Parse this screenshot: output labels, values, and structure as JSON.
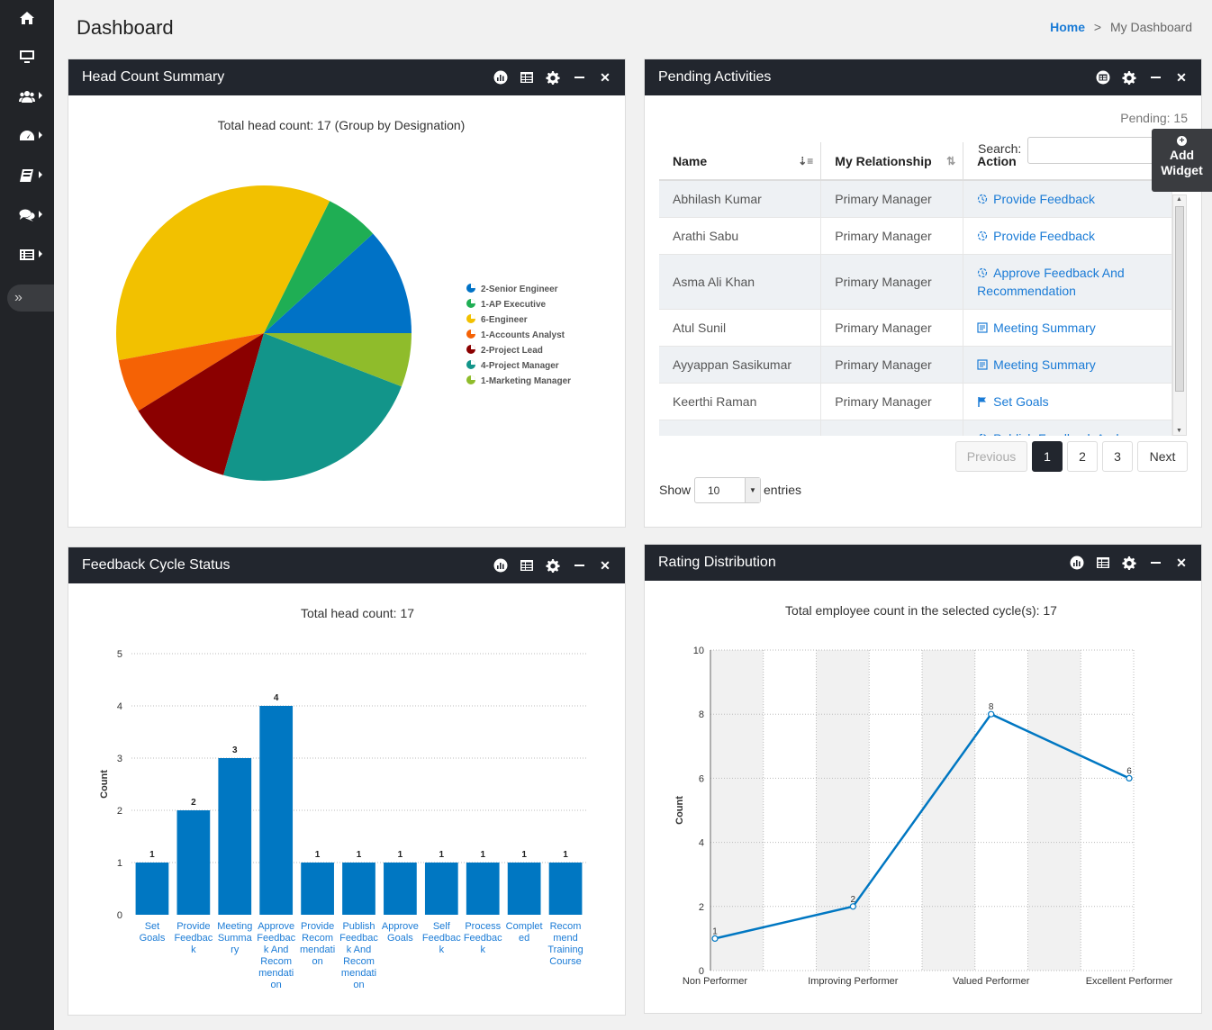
{
  "sidebar": {
    "items": [
      {
        "icon": "home-icon"
      },
      {
        "icon": "monitor-icon"
      },
      {
        "icon": "users-icon"
      },
      {
        "icon": "dashboard-gauge-icon"
      },
      {
        "icon": "book-icon"
      },
      {
        "icon": "chat-icon"
      },
      {
        "icon": "list-icon"
      }
    ],
    "toggle": "»"
  },
  "header": {
    "title": "Dashboard",
    "breadcrumb": {
      "home": "Home",
      "separator": ">",
      "current": "My Dashboard"
    }
  },
  "add_widget": {
    "line1": "Add",
    "line2": "Widget"
  },
  "panels": {
    "headcount": {
      "title": "Head Count Summary",
      "subtitle": "Total head count: 17 (Group by Designation)"
    },
    "pending": {
      "title": "Pending Activities",
      "pending_label": "Pending: 15",
      "search_label": "Search:",
      "search_value": "",
      "columns": [
        "Name",
        "My Relationship",
        "Action"
      ],
      "rows": [
        {
          "name": "Abhilash Kumar",
          "relationship": "Primary Manager",
          "action": "Provide Feedback",
          "icon": "feedback-icon"
        },
        {
          "name": "Arathi Sabu",
          "relationship": "Primary Manager",
          "action": "Provide Feedback",
          "icon": "feedback-icon"
        },
        {
          "name": "Asma Ali Khan",
          "relationship": "Primary Manager",
          "action": "Approve Feedback And Recommendation",
          "icon": "feedback-icon"
        },
        {
          "name": "Atul Sunil",
          "relationship": "Primary Manager",
          "action": "Meeting Summary",
          "icon": "meeting-icon"
        },
        {
          "name": "Ayyappan Sasikumar",
          "relationship": "Primary Manager",
          "action": "Meeting Summary",
          "icon": "meeting-icon"
        },
        {
          "name": "Keerthi Raman",
          "relationship": "Primary Manager",
          "action": "Set Goals",
          "icon": "flag-icon"
        },
        {
          "name": "",
          "relationship": "",
          "action": "Publish Feedback And",
          "icon": "feedback-icon"
        }
      ],
      "show_label": "Show",
      "entries_value": "10",
      "entries_label": "entries",
      "pager": {
        "previous": "Previous",
        "pages": [
          "1",
          "2",
          "3"
        ],
        "next": "Next",
        "active_page": "1"
      }
    },
    "feedback": {
      "title": "Feedback Cycle Status",
      "subtitle": "Total head count: 17"
    },
    "rating": {
      "title": "Rating Distribution",
      "subtitle": "Total employee count in the selected cycle(s): 17"
    }
  },
  "colors": {
    "accent": "#1a7bd6",
    "panel_header": "#22262e",
    "bar": "#0077c2",
    "line": "#0077c2"
  },
  "chart_data": [
    {
      "type": "pie",
      "title": "Total head count: 17 (Group by Designation)",
      "slices": [
        {
          "label": "2-Senior Engineer",
          "value": 2,
          "color": "#0072c6"
        },
        {
          "label": "1-AP Executive",
          "value": 1,
          "color": "#1fae54"
        },
        {
          "label": "6-Engineer",
          "value": 6,
          "color": "#f2c100"
        },
        {
          "label": "1-Accounts Analyst",
          "value": 1,
          "color": "#f56205"
        },
        {
          "label": "2-Project Lead",
          "value": 2,
          "color": "#8b0000"
        },
        {
          "label": "4-Project Manager",
          "value": 4,
          "color": "#12958a"
        },
        {
          "label": "1-Marketing Manager",
          "value": 1,
          "color": "#8fbc2b"
        }
      ],
      "legend_position": "right"
    },
    {
      "type": "bar",
      "title": "Total head count: 17",
      "categories": [
        [
          "Set",
          "Goals"
        ],
        [
          "Provide",
          "Feedbac",
          "k"
        ],
        [
          "Meeting",
          "Summa",
          "ry"
        ],
        [
          "Approve",
          "Feedbac",
          "k And",
          "Recom",
          "mendati",
          "on"
        ],
        [
          "Provide",
          "Recom",
          "mendati",
          "on"
        ],
        [
          "Publish",
          "Feedbac",
          "k And",
          "Recom",
          "mendati",
          "on"
        ],
        [
          "Approve",
          "Goals"
        ],
        [
          "Self",
          "Feedbac",
          "k"
        ],
        [
          "Process",
          "Feedbac",
          "k"
        ],
        [
          "Complet",
          "ed"
        ],
        [
          "Recom",
          "mend",
          "Training",
          "Course"
        ]
      ],
      "values": [
        1,
        2,
        3,
        4,
        1,
        1,
        1,
        1,
        1,
        1,
        1
      ],
      "ylabel": "Count",
      "ylim": [
        0,
        5
      ],
      "yticks": [
        "0",
        "1",
        "2",
        "3",
        "4",
        "5"
      ],
      "grid": true
    },
    {
      "type": "line",
      "title": "Total employee count in the selected cycle(s): 17",
      "categories": [
        "Non Performer",
        "Improving Performer",
        "Valued Performer",
        "Excellent Performer"
      ],
      "values": [
        1,
        2,
        8,
        6
      ],
      "ylabel": "Count",
      "ylim": [
        0,
        10
      ],
      "yticks": [
        "0",
        "2",
        "4",
        "6",
        "8",
        "10"
      ],
      "grid": true
    }
  ]
}
